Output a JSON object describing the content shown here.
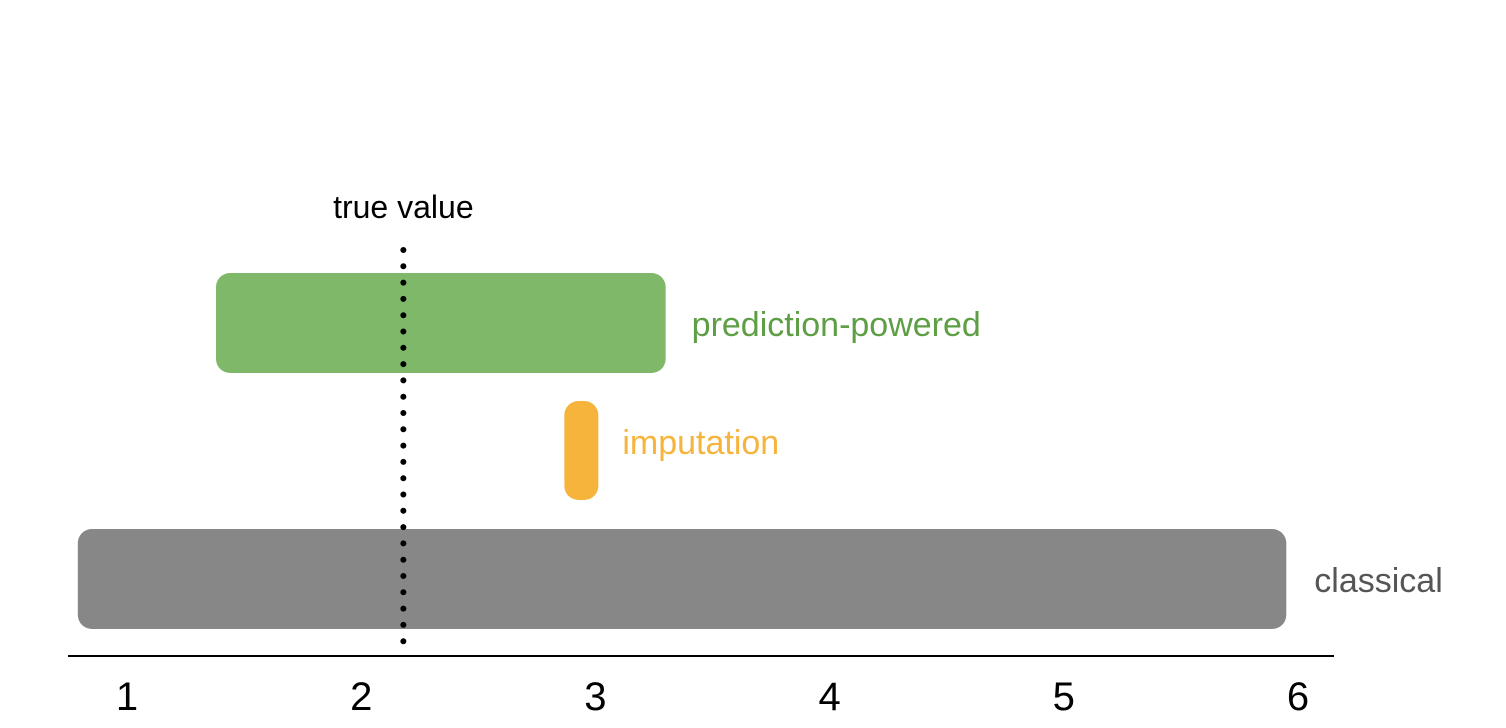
{
  "chart_data": {
    "type": "interval",
    "title": "",
    "xlabel": "",
    "ylabel": "",
    "xlim": [
      0.75,
      6.15
    ],
    "x_ticks": [
      1,
      2,
      3,
      4,
      5,
      6
    ],
    "x_tick_labels": [
      "1",
      "2",
      "3",
      "4",
      "5",
      "6"
    ],
    "reference_line": {
      "label": "true value",
      "value": 2.18,
      "style": "dotted",
      "color": "#000000"
    },
    "series": [
      {
        "name": "prediction-powered",
        "low": 1.38,
        "high": 3.3,
        "color": "#80b86a",
        "label_color": "#5e9e45"
      },
      {
        "name": "imputation",
        "low": 2.92,
        "high": 2.96,
        "color": "#f6b43c",
        "label_color": "#f6b43c"
      },
      {
        "name": "classical",
        "low": 0.79,
        "high": 5.95,
        "color": "#878787",
        "label_color": "#555555"
      }
    ],
    "grid": false,
    "legend": "none"
  }
}
